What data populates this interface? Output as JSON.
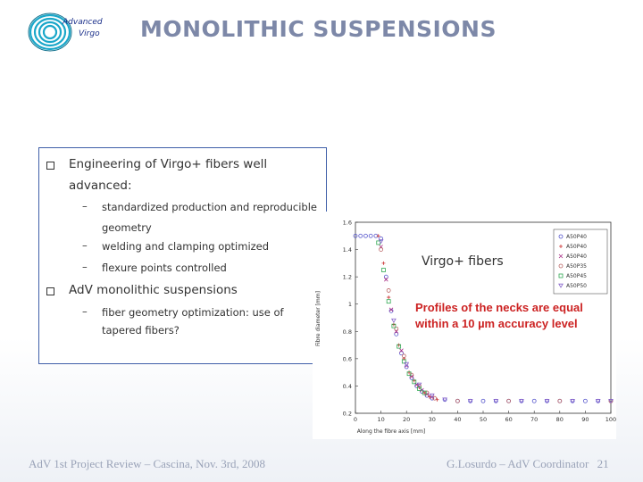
{
  "logo": {
    "line1": "Advanced",
    "line2": "Virgo"
  },
  "title": "MONOLITHIC SUSPENSIONS",
  "bullets": [
    {
      "text_line1": "Engineering of Virgo+ fibers well",
      "text_line2": "advanced:",
      "subs": [
        "standardized production and reproducible",
        "geometry",
        "welding and clamping optimized",
        "flexure points controlled"
      ]
    },
    {
      "text_line1": "AdV monolithic suspensions",
      "subs": [
        "fiber geometry optimization: use of",
        "tapered fibers?"
      ]
    }
  ],
  "chart": {
    "overlay_label": "Virgo+ fibers",
    "annotation": [
      "Profiles of the necks are equal",
      "within a 10 µm accuracy level"
    ],
    "ylabel": "Fibre diameter [mm]",
    "xlabel": "Along the fibre axis [mm]",
    "yticks": [
      "1.6",
      "1.4",
      "1.2",
      "1",
      "0.8",
      "0.6",
      "0.4",
      "0.2"
    ],
    "xticks": [
      "0",
      "10",
      "20",
      "30",
      "40",
      "50",
      "60",
      "70",
      "80",
      "90",
      "100"
    ],
    "legend": [
      "A50P40",
      "A50P40",
      "A50P40",
      "A50P35",
      "A50P45",
      "A50P50"
    ]
  },
  "chart_data": {
    "type": "scatter",
    "xlim": [
      0,
      100
    ],
    "ylim": [
      0.2,
      1.6
    ],
    "series": [
      {
        "name": "A50P40",
        "color": "#5555cc",
        "marker": "o",
        "x": [
          0,
          2,
          4,
          6,
          8,
          10,
          12,
          14,
          16,
          18,
          20,
          22,
          24,
          26,
          28,
          30,
          35,
          40,
          45,
          50,
          55,
          60,
          65,
          70,
          75,
          80,
          85,
          90,
          95,
          100
        ],
        "y": [
          1.5,
          1.5,
          1.5,
          1.5,
          1.5,
          1.48,
          1.2,
          0.95,
          0.78,
          0.64,
          0.54,
          0.46,
          0.4,
          0.36,
          0.33,
          0.31,
          0.3,
          0.29,
          0.29,
          0.29,
          0.29,
          0.29,
          0.29,
          0.29,
          0.29,
          0.29,
          0.29,
          0.29,
          0.29,
          0.29
        ]
      },
      {
        "name": "A50P40",
        "color": "#cc3333",
        "marker": "+",
        "x": [
          9,
          11,
          13,
          15,
          17,
          19,
          21,
          23,
          25,
          27,
          29,
          32
        ],
        "y": [
          1.5,
          1.3,
          1.05,
          0.85,
          0.7,
          0.6,
          0.5,
          0.44,
          0.39,
          0.35,
          0.32,
          0.3
        ]
      },
      {
        "name": "A50P40",
        "color": "#aa3388",
        "marker": "x",
        "x": [
          10,
          12,
          14,
          16,
          18,
          20,
          22,
          24,
          26,
          28,
          30
        ],
        "y": [
          1.42,
          1.18,
          0.96,
          0.8,
          0.66,
          0.55,
          0.47,
          0.41,
          0.37,
          0.34,
          0.32
        ]
      },
      {
        "name": "A50P35",
        "color": "#bb6666",
        "marker": "o",
        "x": [
          10,
          13,
          16,
          19,
          22,
          25,
          28,
          31,
          40,
          60,
          80,
          100
        ],
        "y": [
          1.4,
          1.1,
          0.82,
          0.62,
          0.48,
          0.4,
          0.35,
          0.31,
          0.29,
          0.29,
          0.29,
          0.29
        ]
      },
      {
        "name": "A50P45",
        "color": "#33aa55",
        "marker": "s",
        "x": [
          9,
          11,
          13,
          15,
          17,
          19,
          21,
          23,
          25,
          27
        ],
        "y": [
          1.45,
          1.25,
          1.02,
          0.84,
          0.69,
          0.58,
          0.49,
          0.43,
          0.38,
          0.35
        ]
      },
      {
        "name": "A50P50",
        "color": "#8866cc",
        "marker": "v",
        "x": [
          10,
          15,
          20,
          25,
          30,
          35,
          45,
          55,
          65,
          75,
          85,
          95,
          100
        ],
        "y": [
          1.46,
          0.88,
          0.56,
          0.41,
          0.33,
          0.3,
          0.29,
          0.29,
          0.29,
          0.29,
          0.29,
          0.29,
          0.29
        ]
      }
    ]
  },
  "footer": {
    "left": "AdV 1st Project Review – Cascina, Nov. 3rd, 2008",
    "right": "G.Losurdo – AdV Coordinator",
    "page": "21"
  },
  "colors": {
    "title": "#7d88a8",
    "box_border": "#3f5fa8",
    "annotation": "#cc2222",
    "footer": "#9aa3b8"
  }
}
